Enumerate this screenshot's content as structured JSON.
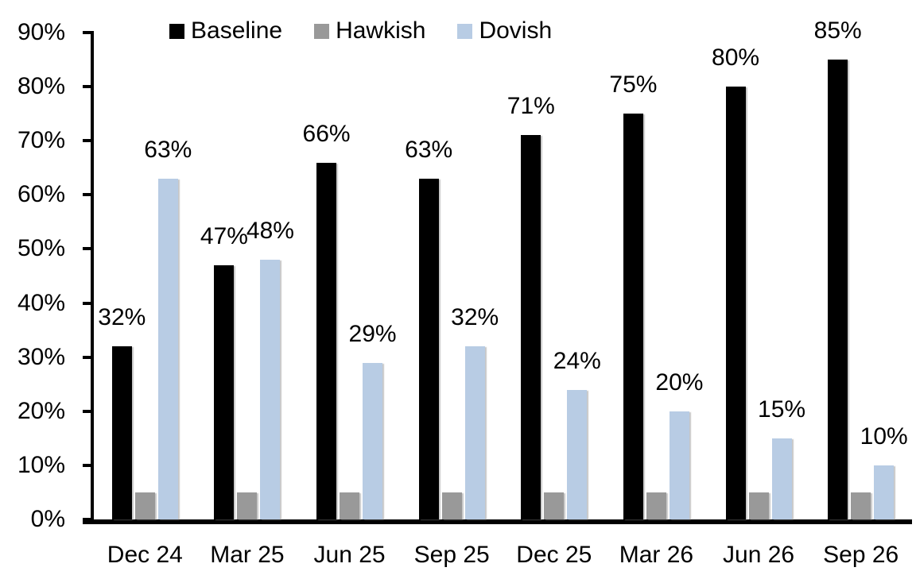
{
  "chart_data": {
    "type": "bar",
    "title": "",
    "xlabel": "",
    "ylabel": "",
    "categories": [
      "Dec 24",
      "Mar 25",
      "Jun 25",
      "Sep 25",
      "Dec 25",
      "Mar 26",
      "Jun 26",
      "Sep 26"
    ],
    "series": [
      {
        "name": "Baseline",
        "color": "#000000",
        "data_labels": true,
        "values": [
          32,
          47,
          66,
          63,
          71,
          75,
          80,
          85
        ]
      },
      {
        "name": "Hawkish",
        "color": "#999999",
        "data_labels": false,
        "values": [
          5,
          5,
          5,
          5,
          5,
          5,
          5,
          5
        ]
      },
      {
        "name": "Dovish",
        "color": "#b8cce4",
        "data_labels": true,
        "values": [
          63,
          48,
          29,
          32,
          24,
          20,
          15,
          10
        ]
      }
    ],
    "label_suffix": "%",
    "ylim": [
      0,
      90
    ],
    "yticks": [
      0,
      10,
      20,
      30,
      40,
      50,
      60,
      70,
      80,
      90
    ],
    "ytick_labels": [
      "0%",
      "10%",
      "20%",
      "30%",
      "40%",
      "50%",
      "60%",
      "70%",
      "80%",
      "90%"
    ],
    "grid": false,
    "legend_position": "top",
    "axis_color": "#000000",
    "background_color": "#ffffff"
  }
}
